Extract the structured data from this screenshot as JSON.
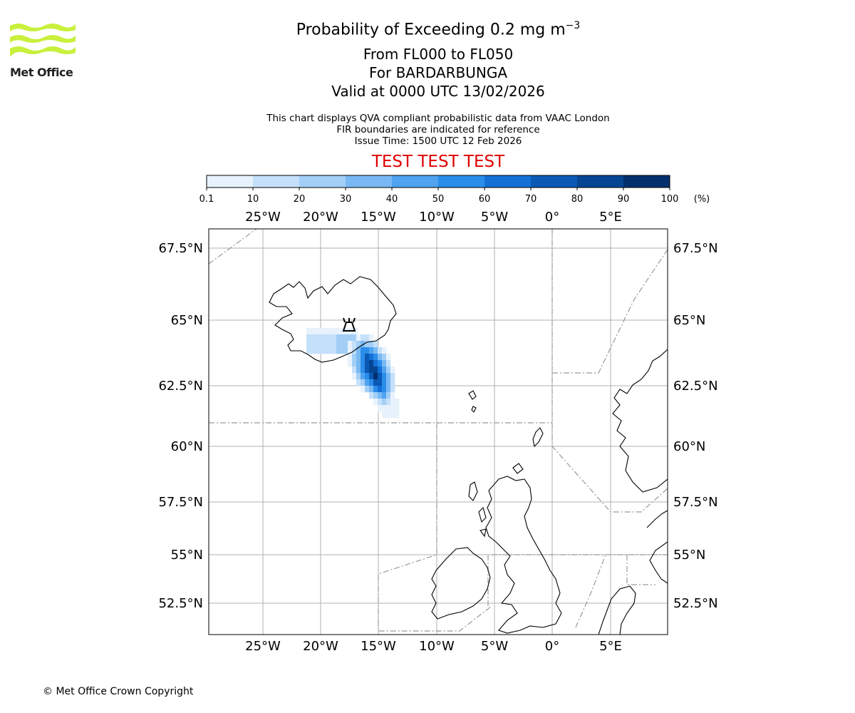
{
  "logo": {
    "text": "Met Office",
    "color": "#c8f03c"
  },
  "header": {
    "title_main": "Probability of Exceeding 0.2 mg m",
    "title_sup": "−3",
    "level_range": "From FL000 to FL050",
    "volcano": "For BARDARBUNGA",
    "valid_time": "Valid at 0000 UTC 13/02/2026",
    "notes": [
      "This chart displays QVA compliant probabilistic data from VAAC London",
      "FIR boundaries are indicated for reference",
      "Issue Time: 1500 UTC 12 Feb 2026"
    ],
    "test_banner": "TEST TEST TEST"
  },
  "colorbar": {
    "ticks": [
      "0.1",
      "10",
      "20",
      "30",
      "40",
      "50",
      "60",
      "70",
      "80",
      "90",
      "100"
    ],
    "unit": "(%)",
    "colors": [
      "#e8f2fd",
      "#c5e0fa",
      "#a3cff7",
      "#79b9f3",
      "#4fa3ef",
      "#2b8dea",
      "#1470d6",
      "#0a59b5",
      "#064592",
      "#03306c"
    ]
  },
  "map": {
    "lon_labels": [
      "25°W",
      "20°W",
      "15°W",
      "10°W",
      "5°W",
      "0°",
      "5°E"
    ],
    "lat_labels": [
      "67.5°N",
      "65°N",
      "62.5°N",
      "60°N",
      "57.5°N",
      "55°N",
      "52.5°N"
    ],
    "volcano_marker": "volcano-icon"
  },
  "footer": {
    "copyright": "© Met Office Crown Copyright"
  }
}
